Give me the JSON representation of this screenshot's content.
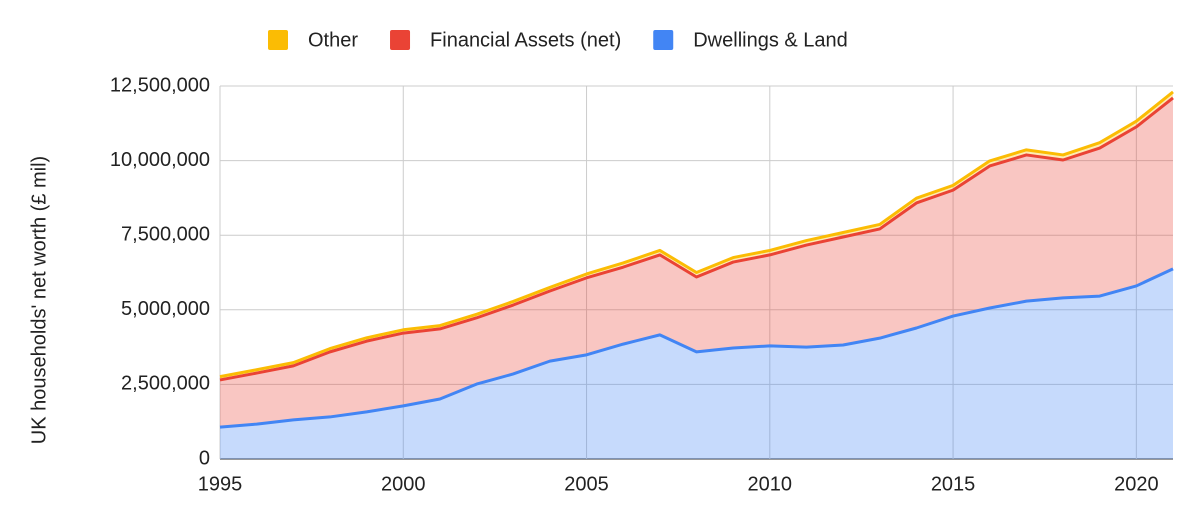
{
  "chart_data": {
    "type": "stacked-area",
    "y_label": "UK households' net worth (£ mil)",
    "x": [
      1995,
      1996,
      1997,
      1998,
      1999,
      2000,
      2001,
      2002,
      2003,
      2004,
      2005,
      2006,
      2007,
      2008,
      2009,
      2010,
      2011,
      2012,
      2013,
      2014,
      2015,
      2016,
      2017,
      2018,
      2019,
      2020,
      2021
    ],
    "series": [
      {
        "name": "Dwellings & Land",
        "color": "#4285f4",
        "values": [
          1070000,
          1170000,
          1310000,
          1410000,
          1580000,
          1780000,
          2010000,
          2510000,
          2850000,
          3280000,
          3490000,
          3850000,
          4160000,
          3590000,
          3720000,
          3790000,
          3750000,
          3820000,
          4050000,
          4390000,
          4790000,
          5060000,
          5290000,
          5400000,
          5460000,
          5800000,
          6370000
        ]
      },
      {
        "name": "Financial Assets (net)",
        "color": "#ea4335",
        "values": [
          1580000,
          1710000,
          1810000,
          2180000,
          2370000,
          2440000,
          2350000,
          2220000,
          2310000,
          2350000,
          2580000,
          2580000,
          2680000,
          2510000,
          2880000,
          3050000,
          3420000,
          3620000,
          3660000,
          4190000,
          4220000,
          4760000,
          4900000,
          4620000,
          4960000,
          5330000,
          5730000
        ]
      },
      {
        "name": "Other",
        "color": "#fbbc04",
        "values": [
          110000,
          110000,
          110000,
          110000,
          110000,
          110000,
          110000,
          120000,
          120000,
          120000,
          130000,
          140000,
          150000,
          150000,
          150000,
          150000,
          150000,
          150000,
          150000,
          160000,
          160000,
          170000,
          170000,
          170000,
          180000,
          190000,
          200000
        ]
      }
    ],
    "xlim": [
      1995,
      2021
    ],
    "xticks": [
      1995,
      2000,
      2005,
      2010,
      2015,
      2020
    ],
    "ylim": [
      0,
      12500000
    ],
    "yticks": [
      0,
      {
        "value": 2500000,
        "label": "2,500,000"
      },
      {
        "value": 5000000,
        "label": "5,000,000"
      },
      {
        "value": 7500000,
        "label": "7,500,000"
      },
      {
        "value": 10000000,
        "label": "10,000,000"
      },
      {
        "value": 12500000,
        "label": "12,500,000"
      }
    ],
    "grid": true,
    "legend": "top"
  }
}
